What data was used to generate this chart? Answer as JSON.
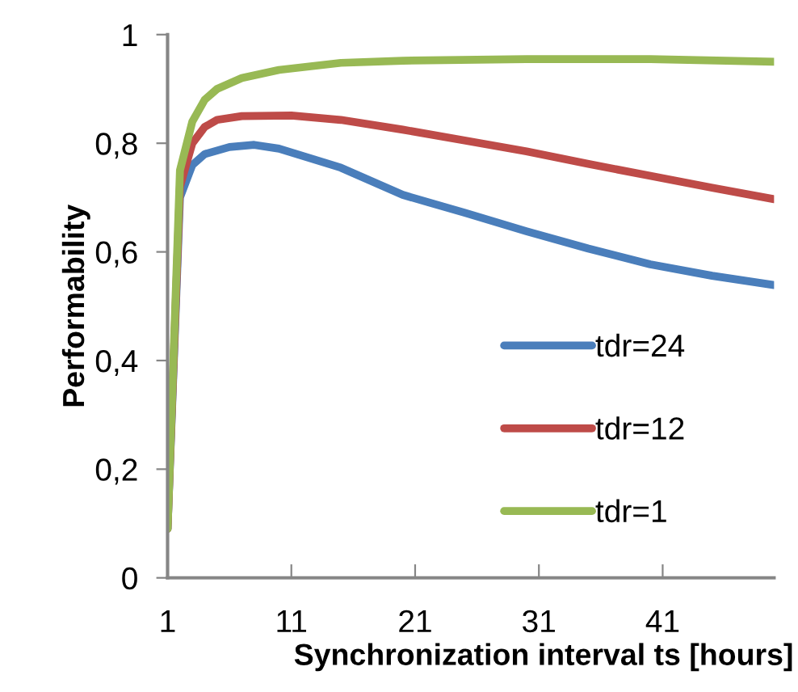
{
  "chart_data": {
    "type": "line",
    "xlabel": "Synchronization interval ts [hours]",
    "ylabel": "Performability",
    "xlim": [
      1,
      50
    ],
    "xticks": [
      1,
      11,
      21,
      31,
      41
    ],
    "ylim": [
      0,
      1
    ],
    "yticks": [
      0,
      {
        "value": 0.2,
        "label": "0,2"
      },
      {
        "value": 0.4,
        "label": "0,4"
      },
      {
        "value": 0.6,
        "label": "0,6"
      },
      {
        "value": 0.8,
        "label": "0,8"
      },
      1
    ],
    "grid": false,
    "legend": "right",
    "marker": "none",
    "line_style": "solid",
    "series": [
      {
        "name": "tdr=24",
        "color": "#4a7ebb",
        "x": [
          1,
          2,
          3,
          4,
          6,
          8,
          10,
          15,
          20,
          25,
          30,
          35,
          40,
          45,
          50
        ],
        "values": [
          0.09,
          0.7,
          0.76,
          0.78,
          0.793,
          0.797,
          0.79,
          0.755,
          0.705,
          0.672,
          0.638,
          0.606,
          0.577,
          0.556,
          0.539
        ]
      },
      {
        "name": "tdr=12",
        "color": "#be4b48",
        "x": [
          1,
          2,
          3,
          4,
          5,
          7,
          11,
          15,
          20,
          25,
          30,
          35,
          40,
          45,
          50
        ],
        "values": [
          0.09,
          0.72,
          0.8,
          0.83,
          0.843,
          0.85,
          0.851,
          0.843,
          0.825,
          0.805,
          0.785,
          0.762,
          0.74,
          0.718,
          0.697
        ]
      },
      {
        "name": "tdr=1",
        "color": "#98b954",
        "x": [
          1,
          2,
          3,
          4,
          5,
          7,
          10,
          15,
          20,
          30,
          40,
          50
        ],
        "values": [
          0.09,
          0.75,
          0.84,
          0.88,
          0.9,
          0.92,
          0.935,
          0.948,
          0.952,
          0.955,
          0.955,
          0.95
        ]
      }
    ]
  }
}
